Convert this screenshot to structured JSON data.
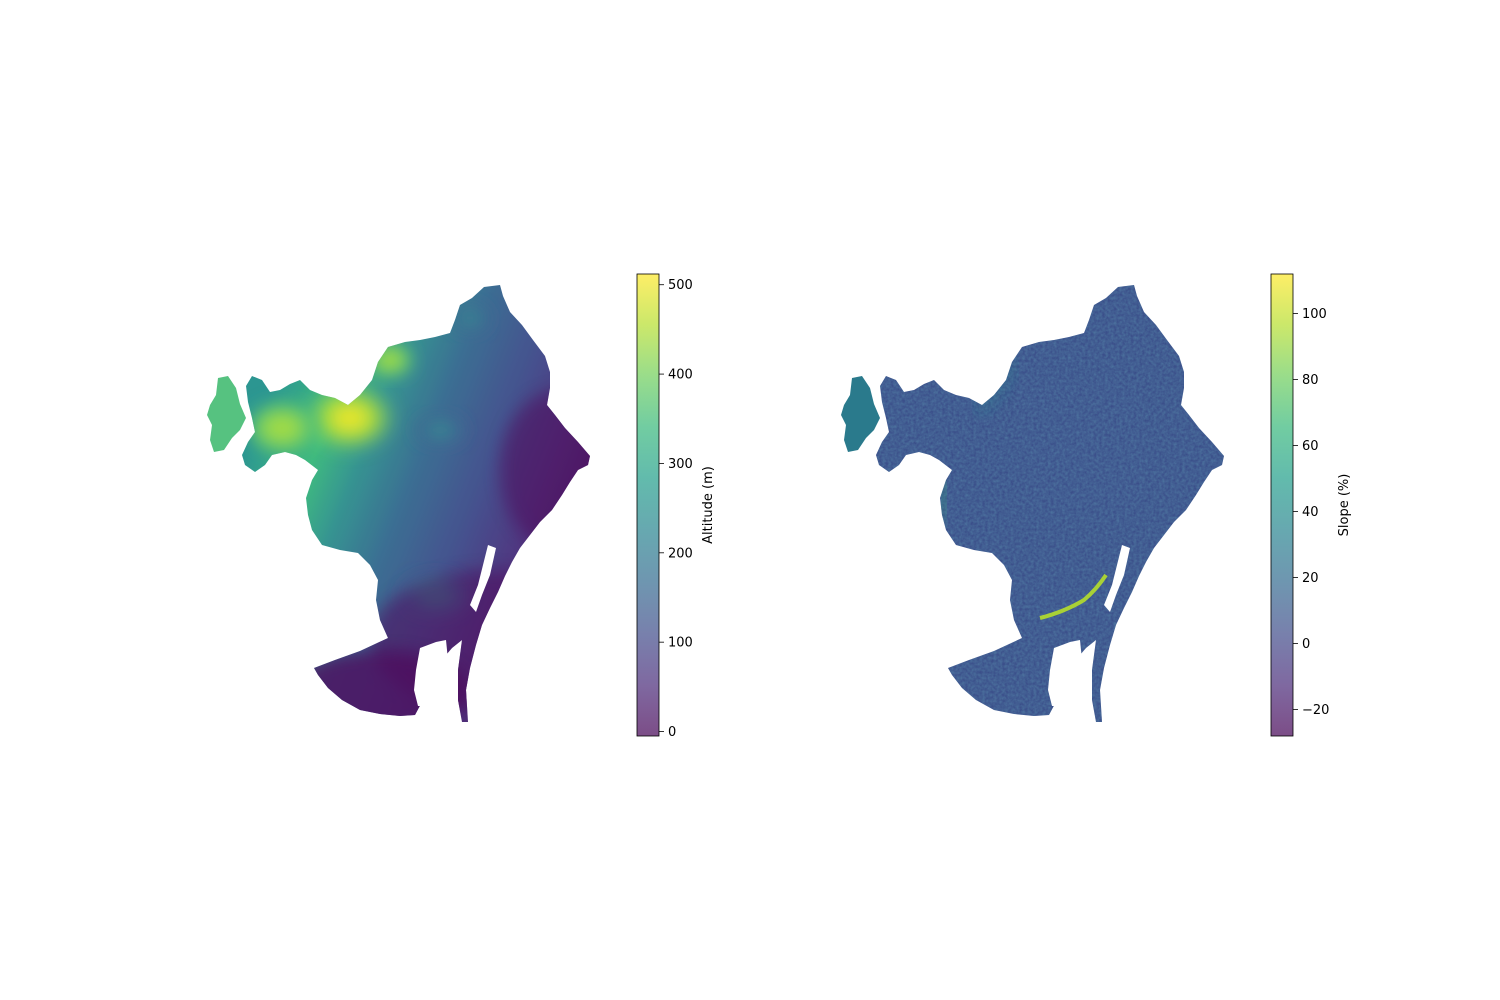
{
  "colors": {
    "viridis": [
      "#440154",
      "#482878",
      "#3e4a89",
      "#31688e",
      "#26828e",
      "#1f9e89",
      "#35b779",
      "#6ece58",
      "#b5de2b",
      "#fde725"
    ],
    "panel_alpha": 0.7
  },
  "chart_data": [
    {
      "type": "heatmap",
      "title": "",
      "colorbar": {
        "label": "Altitude (m)",
        "vmin": -5,
        "vmax": 512,
        "ticks": [
          0,
          100,
          200,
          300,
          400,
          500
        ],
        "tick_labels": [
          "0",
          "100",
          "200",
          "300",
          "400",
          "500"
        ],
        "colormap": "viridis"
      },
      "axes_visible": false
    },
    {
      "type": "heatmap",
      "title": "",
      "colorbar": {
        "label": "Slope (%)",
        "vmin": -28,
        "vmax": 112,
        "ticks": [
          -20,
          0,
          20,
          40,
          60,
          80,
          100
        ],
        "tick_labels": [
          "−20",
          "0",
          "20",
          "40",
          "60",
          "80",
          "100"
        ],
        "colormap": "viridis"
      },
      "axes_visible": false
    }
  ]
}
